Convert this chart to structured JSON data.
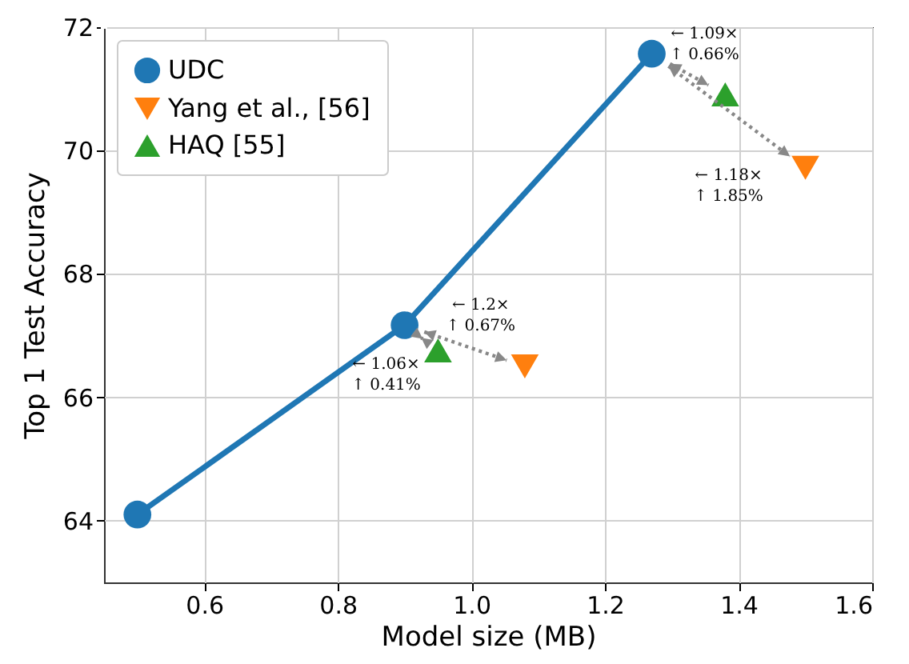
{
  "chart_data": {
    "type": "line",
    "xlabel": "Model size (MB)",
    "ylabel": "Top 1 Test Accuracy",
    "xlim": [
      0.45,
      1.6
    ],
    "xticks": [
      0.6,
      0.8,
      {
        "value": 1,
        "label": "1.0"
      },
      1.2,
      1.4,
      1.6
    ],
    "ylim": [
      63,
      72
    ],
    "yticks": [
      64,
      66,
      68,
      70,
      72
    ],
    "grid": true,
    "legend": "top left",
    "series": [
      {
        "name": "UDC",
        "marker": "circle",
        "color": "#1f77b4",
        "x": [
          0.5,
          0.9,
          1.27
        ],
        "values": [
          64.1,
          67.17,
          71.57
        ]
      },
      {
        "name": "Yang et al., [56]",
        "type": "scatter",
        "marker": "triangle-down",
        "color": "#ff7f0e",
        "x": [
          1.08,
          1.5
        ],
        "values": [
          66.5,
          69.72
        ]
      },
      {
        "name": "HAQ [55]",
        "type": "scatter",
        "marker": "triangle",
        "color": "#2ca02c",
        "x": [
          0.95,
          1.38
        ],
        "values": [
          66.76,
          70.91
        ]
      }
    ],
    "annotations": [
      {
        "text": "← 1.2×\n↑ 0.67%",
        "x": 1.08,
        "y": 66.5
      },
      {
        "text": "← 1.18×\n↑ 1.85%",
        "x": 1.5,
        "y": 69.72
      },
      {
        "text": "← 1.06×\n↑ 0.41%",
        "x": 0.95,
        "y": 66.76
      },
      {
        "text": "← 1.09×\n↑ 0.66%",
        "x": 1.38,
        "y": 70.91
      }
    ]
  }
}
